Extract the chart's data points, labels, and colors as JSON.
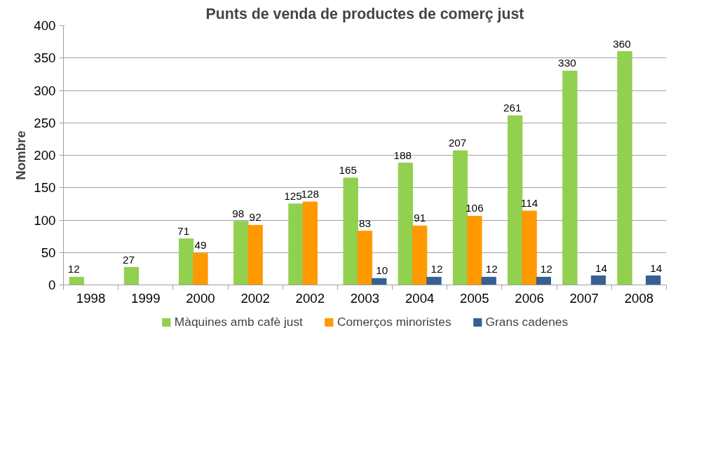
{
  "chart_data": {
    "type": "bar",
    "title": "Punts de venda de productes de comerç just",
    "ylabel": "Nombre",
    "categories": [
      "1998",
      "1999",
      "2000",
      "2002",
      "2002",
      "2003",
      "2004",
      "2005",
      "2006",
      "2007",
      "2008"
    ],
    "series": [
      {
        "name": "Màquines amb cafè just",
        "color": "#92d050",
        "values": [
          12,
          27,
          71,
          98,
          125,
          165,
          188,
          207,
          261,
          330,
          360
        ]
      },
      {
        "name": "Comerços minoristes",
        "color": "#ff9900",
        "values": [
          null,
          null,
          49,
          92,
          128,
          83,
          91,
          106,
          114,
          null,
          null
        ]
      },
      {
        "name": "Grans cadenes",
        "color": "#376092",
        "values": [
          null,
          null,
          null,
          null,
          null,
          10,
          12,
          12,
          12,
          14,
          14
        ]
      }
    ],
    "ylim": [
      0,
      400
    ],
    "yticks": [
      0,
      50,
      100,
      150,
      200,
      250,
      300,
      350,
      400
    ],
    "grid": "y",
    "legend": "bottom",
    "data_labels": true
  }
}
